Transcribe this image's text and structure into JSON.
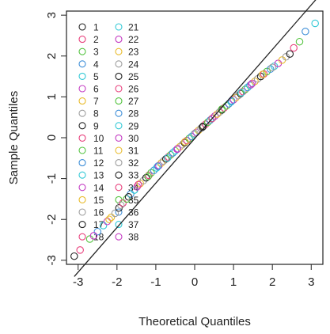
{
  "chart_data": {
    "type": "scatter",
    "xlabel": "Theoretical Quantiles",
    "ylabel": "Sample Quantiles",
    "xlim": [
      -3.3,
      3.3
    ],
    "ylim": [
      -3.1,
      3.1
    ],
    "x_ticks": [
      "-3",
      "-2",
      "-1",
      "0",
      "1",
      "2",
      "3"
    ],
    "y_ticks": [
      "-3",
      "-2",
      "-1",
      "0",
      "1",
      "2",
      "3"
    ],
    "x_tick_values": [
      -3,
      -2,
      -1,
      0,
      1,
      2,
      3
    ],
    "y_tick_values": [
      -3,
      -2,
      -1,
      0,
      1,
      2,
      3
    ],
    "reference_line": {
      "slope": 1.09,
      "intercept": -0.02
    },
    "legend_position": "top-left",
    "legend": {
      "col1": [
        "1",
        "2",
        "3",
        "4",
        "5",
        "6",
        "7",
        "8",
        "9",
        "10",
        "11",
        "12",
        "13",
        "14",
        "15",
        "16",
        "17",
        "18"
      ],
      "col2": [
        "21",
        "22",
        "23",
        "24",
        "25",
        "26",
        "27",
        "28",
        "29",
        "30",
        "31",
        "32",
        "33",
        "34",
        "35",
        "36",
        "37",
        "38"
      ],
      "colors": [
        "#222222",
        "#e8417d",
        "#55c441",
        "#3f8fd8",
        "#33c9d6",
        "#c43cc3",
        "#e9bc2e",
        "#9e9e9e"
      ]
    },
    "points": [
      [
        -3.1,
        -2.9
      ],
      [
        -2.95,
        -2.75
      ],
      [
        -2.7,
        -2.48
      ],
      [
        -2.5,
        -2.3
      ],
      [
        -2.35,
        -2.15
      ],
      [
        -2.25,
        -2.05
      ],
      [
        -2.15,
        -1.95
      ],
      [
        -2.05,
        -1.85
      ],
      [
        -1.95,
        -1.72
      ],
      [
        -1.85,
        -1.6
      ],
      [
        -1.75,
        -1.5
      ],
      [
        -1.65,
        -1.38
      ],
      [
        -1.55,
        -1.28
      ],
      [
        -1.48,
        -1.2
      ],
      [
        -1.4,
        -1.12
      ],
      [
        -1.32,
        -1.05
      ],
      [
        -1.25,
        -0.98
      ],
      [
        -1.18,
        -0.92
      ],
      [
        -1.12,
        -0.86
      ],
      [
        -1.05,
        -0.8
      ],
      [
        -0.98,
        -0.74
      ],
      [
        -0.92,
        -0.68
      ],
      [
        -0.86,
        -0.62
      ],
      [
        -0.8,
        -0.57
      ],
      [
        -0.74,
        -0.52
      ],
      [
        -0.68,
        -0.47
      ],
      [
        -0.62,
        -0.42
      ],
      [
        -0.56,
        -0.37
      ],
      [
        -0.5,
        -0.32
      ],
      [
        -0.44,
        -0.27
      ],
      [
        -0.38,
        -0.22
      ],
      [
        -0.32,
        -0.17
      ],
      [
        -0.26,
        -0.12
      ],
      [
        -0.2,
        -0.07
      ],
      [
        -0.14,
        -0.02
      ],
      [
        -0.08,
        0.03
      ],
      [
        -0.02,
        0.08
      ],
      [
        0.04,
        0.13
      ],
      [
        0.1,
        0.18
      ],
      [
        0.16,
        0.23
      ],
      [
        0.22,
        0.28
      ],
      [
        0.28,
        0.33
      ],
      [
        0.34,
        0.38
      ],
      [
        0.4,
        0.43
      ],
      [
        0.46,
        0.48
      ],
      [
        0.52,
        0.53
      ],
      [
        0.58,
        0.58
      ],
      [
        0.64,
        0.63
      ],
      [
        0.7,
        0.68
      ],
      [
        0.76,
        0.73
      ],
      [
        0.82,
        0.78
      ],
      [
        0.88,
        0.83
      ],
      [
        0.94,
        0.88
      ],
      [
        1.0,
        0.93
      ],
      [
        1.06,
        0.98
      ],
      [
        1.12,
        1.03
      ],
      [
        1.18,
        1.08
      ],
      [
        1.24,
        1.13
      ],
      [
        1.3,
        1.18
      ],
      [
        1.36,
        1.23
      ],
      [
        1.42,
        1.28
      ],
      [
        1.48,
        1.33
      ],
      [
        1.55,
        1.38
      ],
      [
        1.62,
        1.44
      ],
      [
        1.7,
        1.5
      ],
      [
        1.78,
        1.56
      ],
      [
        1.86,
        1.62
      ],
      [
        1.95,
        1.68
      ],
      [
        2.05,
        1.75
      ],
      [
        2.15,
        1.82
      ],
      [
        2.25,
        1.9
      ],
      [
        2.35,
        1.98
      ],
      [
        2.45,
        2.05
      ],
      [
        2.55,
        2.2
      ],
      [
        2.7,
        2.35
      ],
      [
        2.85,
        2.6
      ],
      [
        3.1,
        2.8
      ],
      [
        -2.6,
        -2.4
      ],
      [
        -2.2,
        -2.0
      ],
      [
        -1.9,
        -1.65
      ],
      [
        -1.7,
        -1.45
      ],
      [
        -1.45,
        -1.15
      ],
      [
        -1.2,
        -0.95
      ],
      [
        -0.95,
        -0.7
      ],
      [
        -0.7,
        -0.5
      ],
      [
        -0.45,
        -0.28
      ],
      [
        -0.25,
        -0.1
      ],
      [
        0.0,
        0.1
      ],
      [
        0.2,
        0.26
      ],
      [
        0.45,
        0.47
      ],
      [
        0.7,
        0.7
      ],
      [
        0.95,
        0.9
      ],
      [
        1.2,
        1.1
      ],
      [
        1.45,
        1.3
      ],
      [
        1.75,
        1.55
      ],
      [
        2.0,
        1.72
      ]
    ]
  }
}
